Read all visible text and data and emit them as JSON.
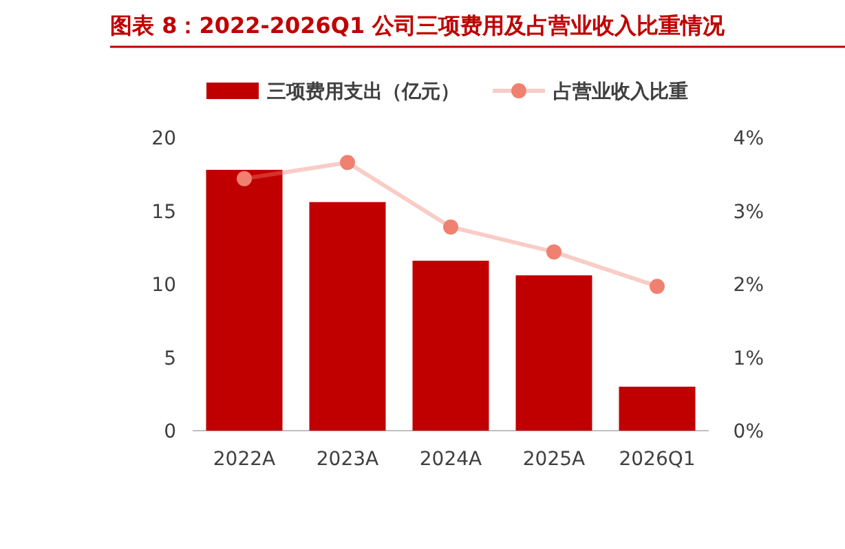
{
  "chart_data": {
    "type": "bar",
    "title": "图表 8：2022-2026Q1 公司三项费用及占营业收入比重情况",
    "categories": [
      "2022A",
      "2023A",
      "2024A",
      "2025A",
      "2026Q1"
    ],
    "series": [
      {
        "name": "三项费用支出（亿元）",
        "color": "#c00000",
        "values": [
          17.8,
          15.6,
          11.6,
          10.6,
          3.0
        ]
      },
      {
        "name": "占营业收入比重",
        "type": "line",
        "axis": "y2",
        "color": "#f08070",
        "marker": "circle",
        "values": [
          3.44,
          3.66,
          2.78,
          2.44,
          1.97
        ]
      }
    ],
    "ylim": [
      0,
      20
    ],
    "yticks": [
      0,
      5,
      10,
      15,
      20
    ],
    "y2lim": [
      0,
      4
    ],
    "y2ticks": [
      {
        "value": 0,
        "label": "0%"
      },
      {
        "value": 1,
        "label": "1%"
      },
      {
        "value": 2,
        "label": "2%"
      },
      {
        "value": 3,
        "label": "3%"
      },
      {
        "value": 4,
        "label": "4%"
      }
    ],
    "legend": "top",
    "grid": false
  }
}
